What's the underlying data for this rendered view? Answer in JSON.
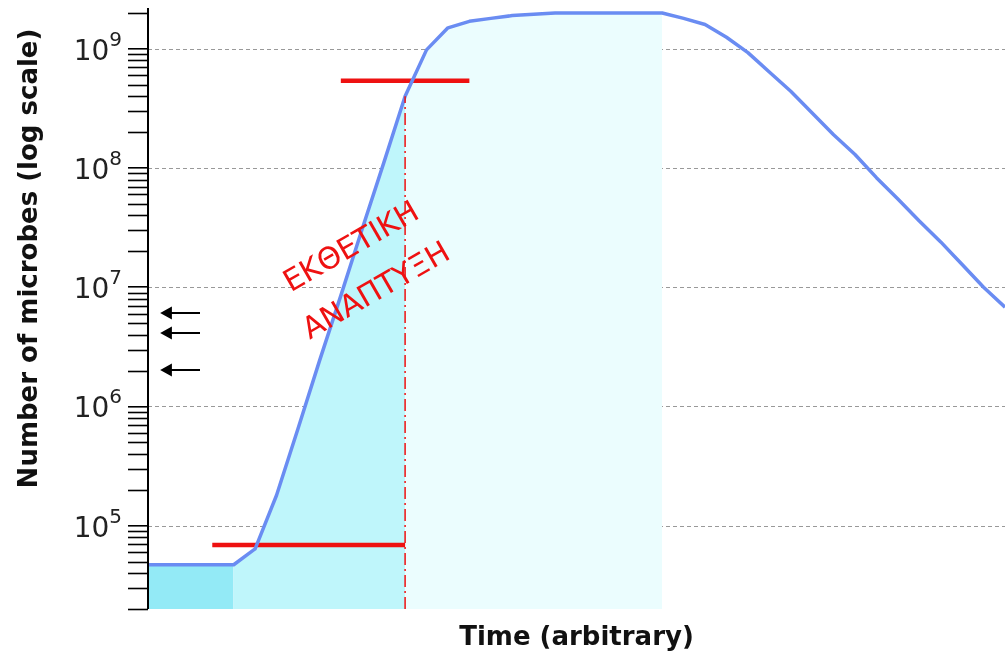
{
  "chart_data": {
    "type": "line",
    "xlabel": "Time (arbitrary)",
    "ylabel": "Number of microbes (log scale)",
    "log": "y",
    "ylim": [
      20000,
      2200000000
    ],
    "categories": [
      null,
      null,
      null,
      null,
      null,
      null,
      null,
      null,
      null,
      null,
      null,
      null,
      null,
      null,
      null,
      null,
      null,
      null,
      null,
      null,
      null,
      null,
      null,
      null,
      null,
      null,
      null,
      null,
      null,
      null,
      null,
      null,
      null,
      null,
      null,
      null,
      null,
      null,
      null,
      null,
      null
    ],
    "yticks": [
      {
        "value": 100000,
        "label": "10$^{5}$"
      },
      {
        "value": 1000000,
        "label": "10$^{6}$"
      },
      {
        "value": 10000000,
        "label": "10$^{7}$"
      },
      {
        "value": 100000000,
        "label": "10$^{8}$"
      },
      {
        "value": 1000000000,
        "label": "10$^{9}$"
      }
    ],
    "tick_labels": "y",
    "grid": "y",
    "marker": "none",
    "series": [
      {
        "color": "#6a8cf2",
        "values": [
          47000,
          47000,
          47000,
          47000,
          47000,
          64000,
          180000,
          650000,
          2400000,
          8500000,
          31000000,
          110000000,
          400000000,
          980000000,
          1500000000,
          1700000000,
          1800000000,
          1900000000,
          1950000000,
          2000000000,
          2000000000,
          2000000000,
          2000000000,
          2000000000,
          2000000000,
          1800000000,
          1600000000,
          1250000000,
          930000000,
          640000000,
          440000000,
          290000000,
          190000000,
          130000000,
          83000000,
          55000000,
          36000000,
          24000000,
          15500000,
          10000000,
          6800000
        ]
      },
      {
        "type": "area",
        "color": "#93eaf6",
        "values": [
          47000,
          47000,
          47000,
          47000,
          47000,
          null,
          null,
          null,
          null,
          null,
          null,
          null,
          null,
          null,
          null,
          null,
          null,
          null,
          null,
          null,
          null,
          null,
          null,
          null,
          null,
          null,
          null,
          null,
          null,
          null,
          null,
          null,
          null,
          null,
          null,
          null,
          null,
          null,
          null,
          null,
          null
        ]
      },
      {
        "type": "area",
        "color": "#bff6fb",
        "values": [
          null,
          null,
          null,
          null,
          47000,
          64000,
          180000,
          650000,
          2400000,
          8500000,
          31000000,
          110000000,
          400000000,
          null,
          null,
          null,
          null,
          null,
          null,
          null,
          null,
          null,
          null,
          null,
          null,
          null,
          null,
          null,
          null,
          null,
          null,
          null,
          null,
          null,
          null,
          null,
          null,
          null,
          null,
          null,
          null
        ]
      },
      {
        "type": "area",
        "color": "#ebfdfe",
        "values": [
          null,
          null,
          null,
          null,
          null,
          null,
          null,
          null,
          null,
          null,
          null,
          null,
          400000000,
          980000000,
          1500000000,
          1700000000,
          1800000000,
          1900000000,
          1950000000,
          2000000000,
          2000000000,
          2000000000,
          2000000000,
          2000000000,
          2000000000,
          null,
          null,
          null,
          null,
          null,
          null,
          null,
          null,
          null,
          null,
          null,
          null,
          null,
          null,
          null,
          null
        ]
      },
      {
        "color": "#ee1111",
        "values": [
          null,
          null,
          null,
          69000,
          69000,
          69000,
          69000,
          69000,
          69000,
          69000,
          69000,
          69000,
          69000,
          null,
          null,
          null,
          null,
          null,
          null,
          null,
          null,
          null,
          null,
          null,
          null,
          null,
          null,
          null,
          null,
          null,
          null,
          null,
          null,
          null,
          null,
          null,
          null,
          null,
          null,
          null,
          null
        ]
      },
      {
        "color": "#ee1111",
        "values": [
          null,
          null,
          null,
          null,
          null,
          null,
          null,
          null,
          null,
          540000000,
          540000000,
          540000000,
          540000000,
          540000000,
          540000000,
          540000000,
          null,
          null,
          null,
          null,
          null,
          null,
          null,
          null,
          null,
          null,
          null,
          null,
          null,
          null,
          null,
          null,
          null,
          null,
          null,
          null,
          null,
          null,
          null,
          null,
          null
        ]
      }
    ],
    "annotations": [
      "ΕΚΘΕΤΙΚΗ",
      "ΑΝΑΠΤΥΞΗ"
    ]
  }
}
